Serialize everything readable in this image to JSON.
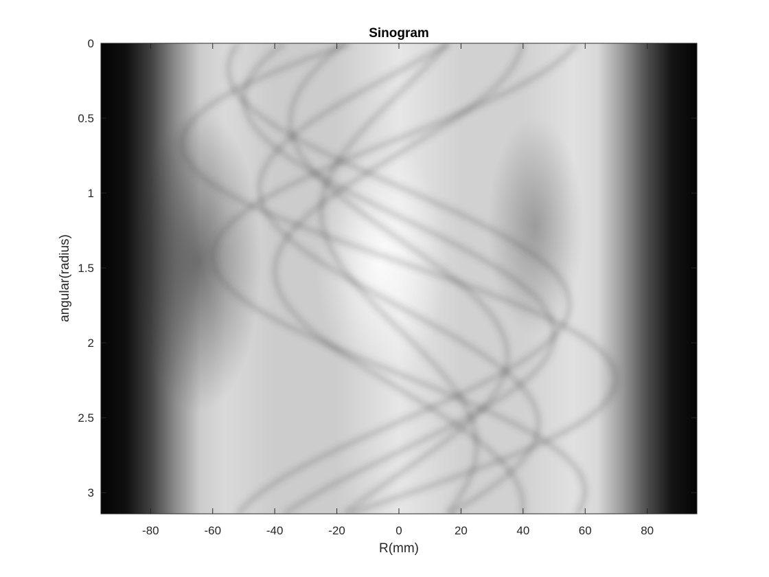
{
  "chart_data": {
    "type": "heatmap",
    "title": "Sinogram",
    "xlabel": "R(mm)",
    "ylabel": "angular(radius)",
    "xlim": [
      -96,
      96
    ],
    "ylim": [
      0,
      3.1416
    ],
    "y_reversed": true,
    "colormap": "gray",
    "grid": false,
    "x_ticks": [
      -80,
      -60,
      -40,
      -20,
      0,
      20,
      40,
      60,
      80
    ],
    "x_tick_labels": [
      "-80",
      "-60",
      "-40",
      "-20",
      "0",
      "20",
      "40",
      "60",
      "80"
    ],
    "y_ticks": [
      0,
      0.5,
      1,
      1.5,
      2,
      2.5,
      3
    ],
    "y_tick_labels": [
      "0",
      "0.5",
      "1",
      "1.5",
      "2",
      "2.5",
      "3"
    ],
    "intensity_profile_along_R": {
      "R": [
        -96,
        -88,
        -80,
        -72,
        -64,
        -56,
        -40,
        -20,
        0,
        20,
        40,
        56,
        64,
        72,
        80,
        88,
        96
      ],
      "brightness": [
        0.02,
        0.06,
        0.25,
        0.55,
        0.8,
        0.85,
        0.8,
        0.8,
        0.9,
        0.82,
        0.82,
        0.88,
        0.85,
        0.6,
        0.3,
        0.08,
        0.02
      ]
    },
    "bright_region": {
      "R_center": -5,
      "angle_center": 1.45,
      "value": 1.0
    },
    "dark_region": {
      "R_center": -70,
      "angle_center": 1.5,
      "value": 0.3
    }
  }
}
